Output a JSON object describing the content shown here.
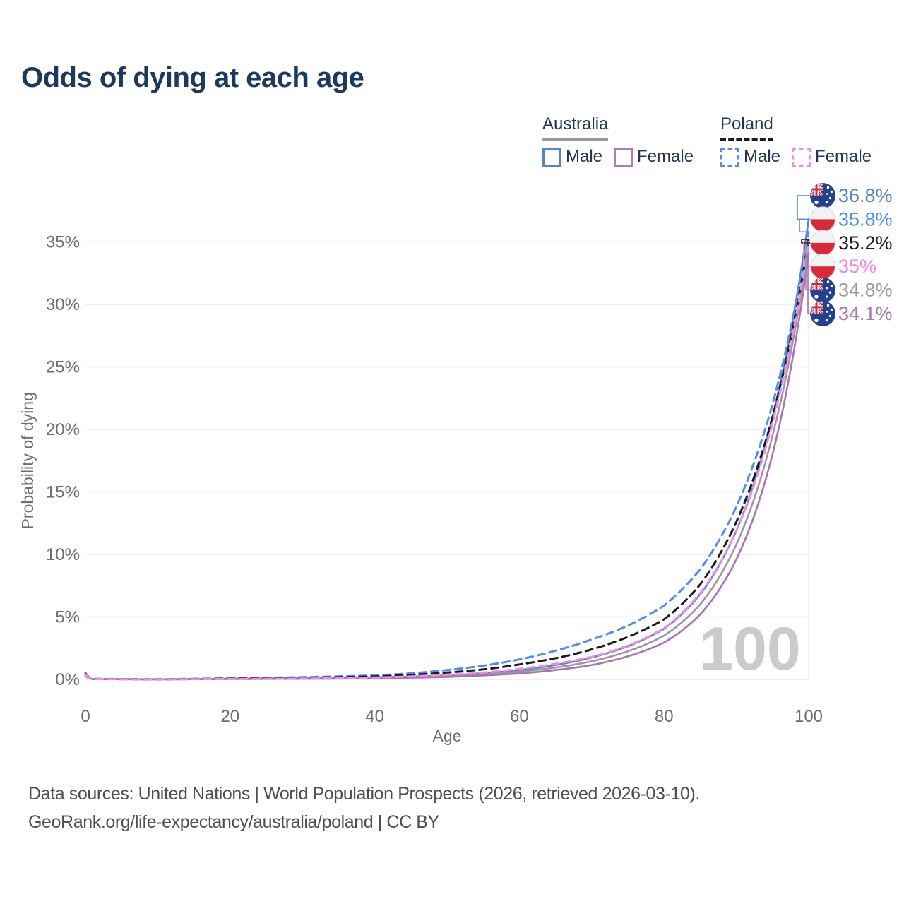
{
  "title": "Odds of dying at each age",
  "watermark": "100",
  "legend": {
    "groups": [
      {
        "country": "Australia",
        "line_style": "solid",
        "underline_color": "#9a9a9a",
        "items": [
          {
            "label": "Male",
            "color": "#5585c2"
          },
          {
            "label": "Female",
            "color": "#b279b9"
          }
        ]
      },
      {
        "country": "Poland",
        "line_style": "dashed",
        "underline_color": "#1a1a1a",
        "items": [
          {
            "label": "Male",
            "color": "#4f8df0"
          },
          {
            "label": "Female",
            "color": "#f788ec"
          }
        ]
      }
    ]
  },
  "footer": {
    "line1": "Data sources: United Nations | World Population Prospects (2026, retrieved 2026-03-10).",
    "line2": "GeoRank.org/life-expectancy/australia/poland | CC BY"
  },
  "chart_data": {
    "type": "line",
    "title": "Odds of dying at each age",
    "xlabel": "Age",
    "ylabel": "Probability of dying",
    "xlim": [
      0,
      100
    ],
    "ylim": [
      0,
      38.5
    ],
    "xticks": [
      0,
      20,
      40,
      60,
      80,
      100
    ],
    "yticks": [
      0,
      5,
      10,
      15,
      20,
      25,
      30,
      35
    ],
    "ytick_suffix": "%",
    "grid": true,
    "legend_position": "top-right",
    "ages": [
      0,
      1,
      10,
      20,
      30,
      40,
      50,
      55,
      60,
      65,
      70,
      75,
      80,
      85,
      90,
      95,
      100
    ],
    "series": [
      {
        "name": "Australia Male",
        "slug": "australia-male",
        "flag": "au",
        "color": "#5585c2",
        "dash": "solid",
        "end_label": "36.8%",
        "end_value": 36.8,
        "values": [
          0.35,
          0.03,
          0.01,
          0.06,
          0.1,
          0.16,
          0.32,
          0.5,
          0.75,
          1.15,
          1.75,
          2.65,
          4.05,
          6.8,
          11.9,
          21.0,
          36.8
        ]
      },
      {
        "name": "Australia",
        "slug": "australia",
        "flag": "au",
        "color": "#9a9a9a",
        "dash": "solid",
        "end_label": "34.8%",
        "end_value": 34.8,
        "values": [
          0.32,
          0.025,
          0.009,
          0.045,
          0.08,
          0.13,
          0.27,
          0.42,
          0.62,
          0.95,
          1.45,
          2.25,
          3.5,
          6.0,
          10.8,
          19.5,
          34.8
        ]
      },
      {
        "name": "Australia Female",
        "slug": "australia-female",
        "flag": "au",
        "color": "#a873b3",
        "dash": "solid",
        "end_label": "34.1%",
        "end_value": 34.1,
        "values": [
          0.28,
          0.02,
          0.008,
          0.03,
          0.05,
          0.09,
          0.2,
          0.32,
          0.48,
          0.75,
          1.15,
          1.85,
          2.95,
          5.2,
          9.6,
          18.0,
          34.1
        ]
      },
      {
        "name": "Poland Male",
        "slug": "poland-male",
        "flag": "pl",
        "color": "#4f8df0",
        "dash": "dashed",
        "end_label": "35.8%",
        "end_value": 35.8,
        "values": [
          0.5,
          0.04,
          0.02,
          0.1,
          0.18,
          0.32,
          0.75,
          1.1,
          1.6,
          2.3,
          3.2,
          4.3,
          5.9,
          8.8,
          13.8,
          22.0,
          35.8
        ]
      },
      {
        "name": "Poland",
        "slug": "poland",
        "flag": "pl",
        "color": "#1a1a1a",
        "dash": "dashed",
        "end_label": "35.2%",
        "end_value": 35.2,
        "values": [
          0.45,
          0.035,
          0.015,
          0.07,
          0.13,
          0.24,
          0.55,
          0.8,
          1.2,
          1.7,
          2.4,
          3.4,
          4.8,
          7.6,
          12.6,
          21.0,
          35.2
        ]
      },
      {
        "name": "Poland Female",
        "slug": "poland-female",
        "flag": "pl",
        "color": "#f788ec",
        "dash": "dashed",
        "end_label": "35%",
        "end_value": 35.0,
        "values": [
          0.4,
          0.03,
          0.012,
          0.04,
          0.07,
          0.15,
          0.38,
          0.55,
          0.85,
          1.25,
          1.8,
          2.7,
          4.1,
          6.9,
          11.9,
          20.5,
          35.0
        ]
      }
    ],
    "end_labels_order": [
      "Australia Male",
      "Poland Male",
      "Poland",
      "Poland Female",
      "Australia",
      "Australia Female"
    ]
  }
}
